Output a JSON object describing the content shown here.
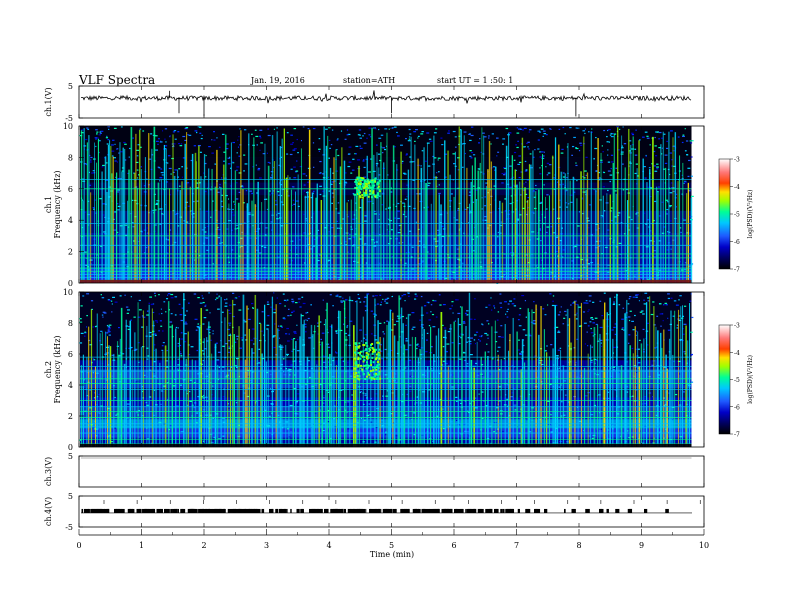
{
  "header": {
    "title": "VLF  Spectra",
    "date": "Jan.  19,  2016",
    "station": "station=ATH",
    "start": "start  UT  =    1  :50:  1"
  },
  "chart_data": [
    {
      "type": "line",
      "panel": "ch1-waveform",
      "ylabel": "ch.1(V)",
      "ylim": [
        -5,
        5
      ],
      "y_ticks": [
        "5",
        "-5"
      ],
      "xlim": [
        0,
        10
      ],
      "baseline_value": 1.2
    },
    {
      "type": "heatmap",
      "panel": "ch1-spectrogram",
      "ylabel": "ch.1\nFrequency  (kHz)",
      "ylabel_lines": [
        "ch.1",
        "Frequency  (kHz)"
      ],
      "ylim": [
        0,
        10
      ],
      "y_ticks": [
        "0",
        "2",
        "4",
        "6",
        "8",
        "10"
      ],
      "xlim": [
        0,
        10
      ],
      "data_end_min": 9.8,
      "color_range": [
        -7,
        -3
      ],
      "colorbar_label": "log(PSD)(V²/Hz)",
      "colorbar_ticks": [
        "-3",
        "-4",
        "-5",
        "-6",
        "-7"
      ],
      "features": [
        {
          "name": "emission",
          "t_start_min": 4.4,
          "t_end_min": 4.8,
          "f_low_khz": 5.5,
          "f_high_khz": 6.8
        }
      ]
    },
    {
      "type": "heatmap",
      "panel": "ch2-spectrogram",
      "ylabel": "ch.2\nFrequency  (kHz)",
      "ylabel_lines": [
        "ch.2",
        "Frequency  (kHz)"
      ],
      "ylim": [
        0,
        10
      ],
      "y_ticks": [
        "0",
        "2",
        "4",
        "6",
        "8",
        "10"
      ],
      "xlim": [
        0,
        10
      ],
      "data_end_min": 9.8,
      "color_range": [
        -7,
        -3
      ],
      "colorbar_label": "log(PSD)(V²/Hz)",
      "colorbar_ticks": [
        "-3",
        "-4",
        "-5",
        "-6",
        "-7"
      ],
      "features": [
        {
          "name": "emission",
          "t_start_min": 4.4,
          "t_end_min": 4.8,
          "f_low_khz": 4.4,
          "f_high_khz": 6.8
        }
      ]
    },
    {
      "type": "line",
      "panel": "ch3-waveform",
      "ylabel": "ch.3(V)",
      "ylim": [
        -5,
        5
      ],
      "y_ticks": [
        "5"
      ],
      "xlim": [
        0,
        10
      ],
      "baseline_value": 5
    },
    {
      "type": "line",
      "panel": "ch4-waveform",
      "ylabel": "ch.4(V)",
      "ylim": [
        -5,
        5
      ],
      "y_ticks": [
        "5",
        "-5"
      ],
      "xlim": [
        0,
        10
      ],
      "baseline_value": 0.5,
      "xlabel": "Time  (min)",
      "x_ticks": [
        "0",
        "1",
        "2",
        "3",
        "4",
        "5",
        "6",
        "7",
        "8",
        "9",
        "10"
      ]
    }
  ],
  "colors": {
    "colormap": [
      "#000000",
      "#000060",
      "#0000c8",
      "#1e5aff",
      "#00c8ff",
      "#00ff96",
      "#a0ff00",
      "#ffe000",
      "#ff4000",
      "#ff7878",
      "#ffffff"
    ]
  }
}
